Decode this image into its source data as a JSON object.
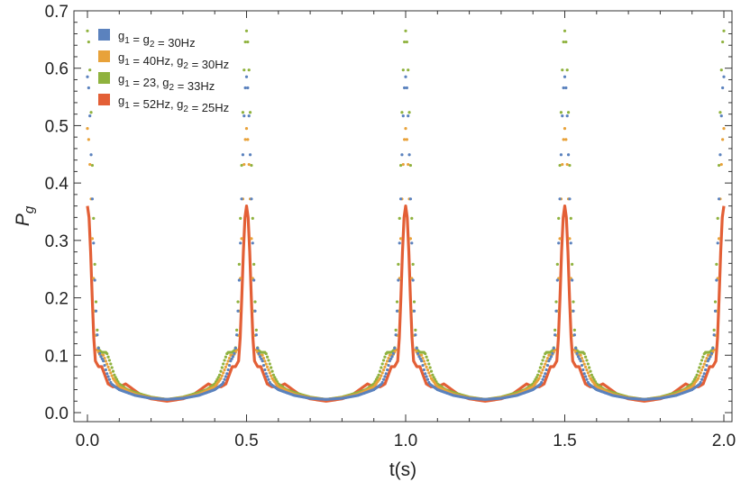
{
  "chart_data": {
    "type": "scatter",
    "xlabel": "t(s)",
    "ylabel": "P",
    "ylabel_sub": "g",
    "xlim": [
      0,
      2
    ],
    "ylim": [
      0,
      0.7
    ],
    "x_ticks": [
      "0.0",
      "0.5",
      "1.0",
      "1.5",
      "2.0"
    ],
    "y_ticks": [
      "0.0",
      "0.1",
      "0.2",
      "0.3",
      "0.4",
      "0.5",
      "0.6",
      "0.7"
    ],
    "period": 0.5,
    "legend_position": "top-left",
    "series": [
      {
        "legend": [
          {
            "t": "g",
            "sub": "1"
          },
          {
            "t": " = g",
            "sub": "2"
          },
          {
            "t": " = 30Hz"
          }
        ],
        "color": "#5b82be",
        "style": "points",
        "profile": [
          [
            0.0,
            0.585
          ],
          [
            0.005,
            0.56
          ],
          [
            0.01,
            0.48
          ],
          [
            0.015,
            0.38
          ],
          [
            0.02,
            0.28
          ],
          [
            0.025,
            0.2
          ],
          [
            0.03,
            0.14
          ],
          [
            0.035,
            0.11
          ],
          [
            0.04,
            0.1
          ],
          [
            0.05,
            0.09
          ],
          [
            0.06,
            0.07
          ],
          [
            0.075,
            0.05
          ],
          [
            0.1,
            0.04
          ],
          [
            0.15,
            0.03
          ],
          [
            0.2,
            0.025
          ],
          [
            0.25,
            0.023
          ]
        ]
      },
      {
        "legend": [
          {
            "t": "g",
            "sub": "1"
          },
          {
            "t": " = 40Hz, g",
            "sub": "2"
          },
          {
            "t": " = 30Hz"
          }
        ],
        "color": "#e8a23a",
        "style": "points",
        "profile": [
          [
            0.0,
            0.495
          ],
          [
            0.005,
            0.47
          ],
          [
            0.01,
            0.4
          ],
          [
            0.015,
            0.31
          ],
          [
            0.02,
            0.22
          ],
          [
            0.025,
            0.15
          ],
          [
            0.03,
            0.11
          ],
          [
            0.04,
            0.1
          ],
          [
            0.05,
            0.1
          ],
          [
            0.065,
            0.08
          ],
          [
            0.08,
            0.06
          ],
          [
            0.1,
            0.045
          ],
          [
            0.15,
            0.032
          ],
          [
            0.2,
            0.026
          ],
          [
            0.25,
            0.023
          ]
        ]
      },
      {
        "legend": [
          {
            "t": "g",
            "sub": "1"
          },
          {
            "t": " = 23, g",
            "sub": "2"
          },
          {
            "t": " = 33Hz"
          }
        ],
        "color": "#8fb23e",
        "style": "points",
        "profile": [
          [
            0.0,
            0.665
          ],
          [
            0.005,
            0.64
          ],
          [
            0.01,
            0.56
          ],
          [
            0.015,
            0.44
          ],
          [
            0.02,
            0.32
          ],
          [
            0.025,
            0.22
          ],
          [
            0.03,
            0.15
          ],
          [
            0.035,
            0.11
          ],
          [
            0.045,
            0.105
          ],
          [
            0.06,
            0.105
          ],
          [
            0.07,
            0.09
          ],
          [
            0.085,
            0.065
          ],
          [
            0.1,
            0.05
          ],
          [
            0.125,
            0.04
          ],
          [
            0.15,
            0.035
          ],
          [
            0.2,
            0.027
          ],
          [
            0.25,
            0.023
          ]
        ]
      },
      {
        "legend": [
          {
            "t": "g",
            "sub": "1"
          },
          {
            "t": " = 52Hz, g",
            "sub": "2"
          },
          {
            "t": " = 25Hz"
          }
        ],
        "color": "#e35f36",
        "style": "line",
        "profile": [
          [
            0.0,
            0.36
          ],
          [
            0.005,
            0.34
          ],
          [
            0.01,
            0.28
          ],
          [
            0.015,
            0.2
          ],
          [
            0.02,
            0.13
          ],
          [
            0.025,
            0.09
          ],
          [
            0.035,
            0.08
          ],
          [
            0.045,
            0.08
          ],
          [
            0.055,
            0.065
          ],
          [
            0.065,
            0.05
          ],
          [
            0.08,
            0.045
          ],
          [
            0.1,
            0.045
          ],
          [
            0.12,
            0.05
          ],
          [
            0.14,
            0.042
          ],
          [
            0.17,
            0.03
          ],
          [
            0.2,
            0.024
          ],
          [
            0.25,
            0.02
          ]
        ]
      }
    ]
  }
}
